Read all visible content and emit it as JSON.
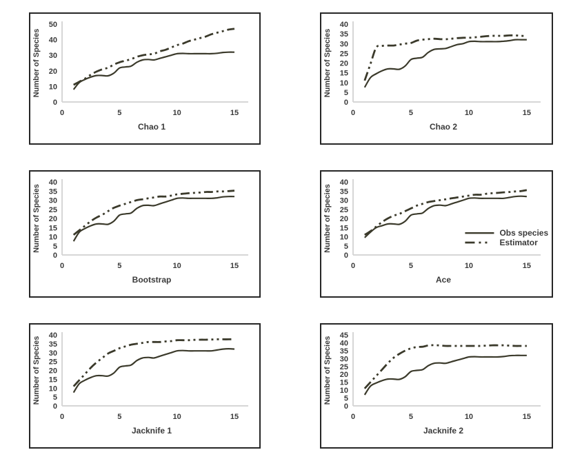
{
  "colors": {
    "line": "#3b3a2b",
    "axis": "#d6d6d6",
    "text": "#3a3a3a",
    "panel_border": "#262626",
    "background": "#ffffff"
  },
  "legend": {
    "entries": [
      {
        "label": "Obs species",
        "style": "solid"
      },
      {
        "label": "Estimator",
        "style": "dash-dot-dot"
      }
    ]
  },
  "chart_data": [
    {
      "type": "line",
      "title": "",
      "xlabel": "Chao 1",
      "ylabel": "Number of Species",
      "xlim": [
        0,
        15.6
      ],
      "ylim": [
        0,
        50
      ],
      "xticks": [
        0,
        5,
        10,
        15
      ],
      "yticks": [
        0,
        10,
        20,
        30,
        40,
        50
      ],
      "grid": false,
      "legend_visible": false,
      "x": [
        1,
        1.5,
        2,
        2.5,
        3,
        3.5,
        4,
        4.5,
        5,
        5.5,
        6,
        6.5,
        7,
        7.5,
        8,
        8.5,
        9,
        9.5,
        10,
        10.5,
        11,
        11.5,
        12,
        12.5,
        13,
        13.5,
        14,
        14.5,
        15
      ],
      "series": [
        {
          "name": "Obs species",
          "style": "solid",
          "values": [
            8,
            12.5,
            14.5,
            16,
            17,
            17,
            16.8,
            18.5,
            21.8,
            22.5,
            23,
            25.5,
            27,
            27.3,
            27,
            28,
            29,
            30,
            31,
            31.2,
            31,
            31,
            31,
            31,
            31,
            31.3,
            31.8,
            32,
            32
          ]
        },
        {
          "name": "Estimator",
          "style": "dash-dot-dot",
          "values": [
            11,
            13,
            15,
            17.5,
            19.5,
            21,
            22,
            24,
            25.5,
            26.5,
            27.5,
            29,
            30,
            30.5,
            31,
            32.5,
            33.5,
            35,
            36.5,
            37.5,
            39,
            40,
            41,
            42,
            43.5,
            44.5,
            45.5,
            46.5,
            47
          ]
        }
      ]
    },
    {
      "type": "line",
      "title": "",
      "xlabel": "Chao 2",
      "ylabel": "Number of Species",
      "xlim": [
        0,
        15.6
      ],
      "ylim": [
        0,
        40
      ],
      "xticks": [
        0,
        5,
        10,
        15
      ],
      "yticks": [
        0,
        5,
        10,
        15,
        20,
        25,
        30,
        35,
        40
      ],
      "grid": false,
      "legend_visible": false,
      "x": [
        1,
        1.5,
        2,
        2.5,
        3,
        3.5,
        4,
        4.5,
        5,
        5.5,
        6,
        6.5,
        7,
        7.5,
        8,
        8.5,
        9,
        9.5,
        10,
        10.5,
        11,
        11.5,
        12,
        12.5,
        13,
        13.5,
        14,
        14.5,
        15
      ],
      "series": [
        {
          "name": "Obs species",
          "style": "solid",
          "values": [
            7.5,
            12.5,
            14.5,
            16,
            17,
            17,
            16.8,
            18.5,
            21.8,
            22.5,
            23,
            25.5,
            27,
            27.3,
            27.5,
            28.5,
            29.5,
            30,
            31,
            31.2,
            31,
            31,
            31,
            31,
            31.2,
            31.5,
            32,
            32,
            32
          ]
        },
        {
          "name": "Estimator",
          "style": "dash-dot-dot",
          "values": [
            11,
            19.5,
            28,
            28.8,
            29,
            29,
            29.5,
            30,
            30.3,
            31.5,
            32,
            32.3,
            32.5,
            32.3,
            32.2,
            32.5,
            32.8,
            33,
            33,
            33.2,
            33.5,
            33.8,
            34,
            34,
            34,
            34.2,
            34.2,
            34,
            33.8
          ]
        }
      ]
    },
    {
      "type": "line",
      "title": "",
      "xlabel": "Bootstrap",
      "ylabel": "Number of Species",
      "xlim": [
        0,
        15.6
      ],
      "ylim": [
        0,
        40
      ],
      "xticks": [
        0,
        5,
        10,
        15
      ],
      "yticks": [
        0,
        5,
        10,
        15,
        20,
        25,
        30,
        35,
        40
      ],
      "grid": false,
      "legend_visible": false,
      "x": [
        1,
        1.5,
        2,
        2.5,
        3,
        3.5,
        4,
        4.5,
        5,
        5.5,
        6,
        6.5,
        7,
        7.5,
        8,
        8.5,
        9,
        9.5,
        10,
        10.5,
        11,
        11.5,
        12,
        12.5,
        13,
        13.5,
        14,
        14.5,
        15
      ],
      "series": [
        {
          "name": "Obs species",
          "style": "solid",
          "values": [
            7.5,
            12.5,
            14.5,
            16,
            17,
            17,
            16.8,
            18.5,
            21.8,
            22.5,
            23,
            25.5,
            27,
            27.2,
            27,
            28,
            29,
            30,
            31,
            31.2,
            31,
            31,
            31,
            31,
            31,
            31.3,
            31.8,
            32,
            32
          ]
        },
        {
          "name": "Estimator",
          "style": "dash-dot-dot",
          "values": [
            11,
            13.5,
            16,
            18.5,
            20.5,
            22,
            24,
            25.8,
            27,
            28,
            29,
            30,
            30.5,
            31,
            31.5,
            32,
            32,
            32.5,
            33.2,
            33.5,
            33.8,
            34,
            34.2,
            34.5,
            34.5,
            34.8,
            34.8,
            35,
            35.2
          ]
        }
      ]
    },
    {
      "type": "line",
      "title": "",
      "xlabel": "Ace",
      "ylabel": "Number of Species",
      "xlim": [
        0,
        15.6
      ],
      "ylim": [
        0,
        40
      ],
      "xticks": [
        0,
        5,
        10,
        15
      ],
      "yticks": [
        0,
        5,
        10,
        15,
        20,
        25,
        30,
        35,
        40
      ],
      "grid": false,
      "legend_visible": true,
      "legend_position": "right-center",
      "x": [
        1,
        1.5,
        2,
        2.5,
        3,
        3.5,
        4,
        4.5,
        5,
        5.5,
        6,
        6.5,
        7,
        7.5,
        8,
        8.5,
        9,
        9.5,
        10,
        10.5,
        11,
        11.5,
        12,
        12.5,
        13,
        13.5,
        14,
        14.5,
        15
      ],
      "series": [
        {
          "name": "Obs species",
          "style": "solid",
          "values": [
            9.5,
            12.5,
            15,
            16,
            17,
            17,
            16.8,
            18.5,
            21.8,
            22.5,
            23,
            25.5,
            27,
            27.3,
            27,
            28,
            29,
            30,
            31,
            31.2,
            31,
            31,
            31,
            31,
            31,
            31.5,
            32,
            32.2,
            32
          ]
        },
        {
          "name": "Estimator",
          "style": "dash-dot-dot",
          "values": [
            11,
            13,
            15.5,
            18,
            20,
            21.5,
            22.5,
            24,
            25.5,
            27,
            28,
            29,
            29.5,
            30,
            30.5,
            31,
            31.5,
            32,
            32.5,
            33,
            33,
            33.5,
            33.8,
            34,
            34.3,
            34.5,
            34.8,
            35,
            35.5
          ]
        }
      ]
    },
    {
      "type": "line",
      "title": "",
      "xlabel": "Jacknife 1",
      "ylabel": "Number of  Species",
      "xlim": [
        0,
        15.6
      ],
      "ylim": [
        0,
        40
      ],
      "xticks": [
        0,
        5,
        10,
        15
      ],
      "yticks": [
        0,
        5,
        10,
        15,
        20,
        25,
        30,
        35,
        40
      ],
      "grid": false,
      "legend_visible": false,
      "x": [
        1,
        1.5,
        2,
        2.5,
        3,
        3.5,
        4,
        4.5,
        5,
        5.5,
        6,
        6.5,
        7,
        7.5,
        8,
        8.5,
        9,
        9.5,
        10,
        10.5,
        11,
        11.5,
        12,
        12.5,
        13,
        13.5,
        14,
        14.5,
        15
      ],
      "series": [
        {
          "name": "Obs species",
          "style": "solid",
          "values": [
            7.5,
            12.5,
            14.5,
            16,
            17,
            17,
            16.8,
            18.5,
            21.8,
            22.5,
            23,
            25.5,
            27,
            27.3,
            27,
            28,
            29,
            30,
            31,
            31.2,
            31,
            31,
            31,
            31,
            31,
            31.5,
            32,
            32.2,
            32
          ]
        },
        {
          "name": "Estimator",
          "style": "dash-dot-dot",
          "values": [
            11,
            14.5,
            18,
            21.5,
            24.5,
            27,
            29.5,
            31,
            32.5,
            33.5,
            34.5,
            35,
            35.5,
            36,
            36,
            36,
            36.3,
            36.5,
            37,
            37,
            37,
            37.2,
            37.3,
            37.3,
            37.4,
            37.5,
            37.5,
            37.5,
            37.6
          ]
        }
      ]
    },
    {
      "type": "line",
      "title": "",
      "xlabel": "Jacknife 2",
      "ylabel": "Number of Species",
      "xlim": [
        0,
        15.6
      ],
      "ylim": [
        0,
        45
      ],
      "xticks": [
        0,
        5,
        10,
        15
      ],
      "yticks": [
        0,
        5,
        10,
        15,
        20,
        25,
        30,
        35,
        40,
        45
      ],
      "grid": false,
      "legend_visible": false,
      "x": [
        1,
        1.5,
        2,
        2.5,
        3,
        3.5,
        4,
        4.5,
        5,
        5.5,
        6,
        6.5,
        7,
        7.5,
        8,
        8.5,
        9,
        9.5,
        10,
        10.5,
        11,
        11.5,
        12,
        12.5,
        13,
        13.5,
        14,
        14.5,
        15
      ],
      "series": [
        {
          "name": "Obs species",
          "style": "solid",
          "values": [
            7,
            12.5,
            14.5,
            16,
            17,
            17,
            16.8,
            18.5,
            21.8,
            22.5,
            23,
            25.5,
            27,
            27.2,
            27,
            28,
            29,
            30,
            31,
            31.2,
            31,
            31,
            31,
            31,
            31.3,
            31.8,
            32,
            32,
            32
          ]
        },
        {
          "name": "Estimator",
          "style": "dash-dot-dot",
          "values": [
            11,
            15,
            19,
            23,
            27,
            30.5,
            33,
            35,
            36.5,
            37.3,
            37.5,
            38.3,
            38.5,
            38.3,
            38,
            38,
            38,
            38,
            38,
            38,
            38,
            38.2,
            38.4,
            38.4,
            38.4,
            38.2,
            38,
            38,
            38
          ]
        }
      ]
    }
  ]
}
